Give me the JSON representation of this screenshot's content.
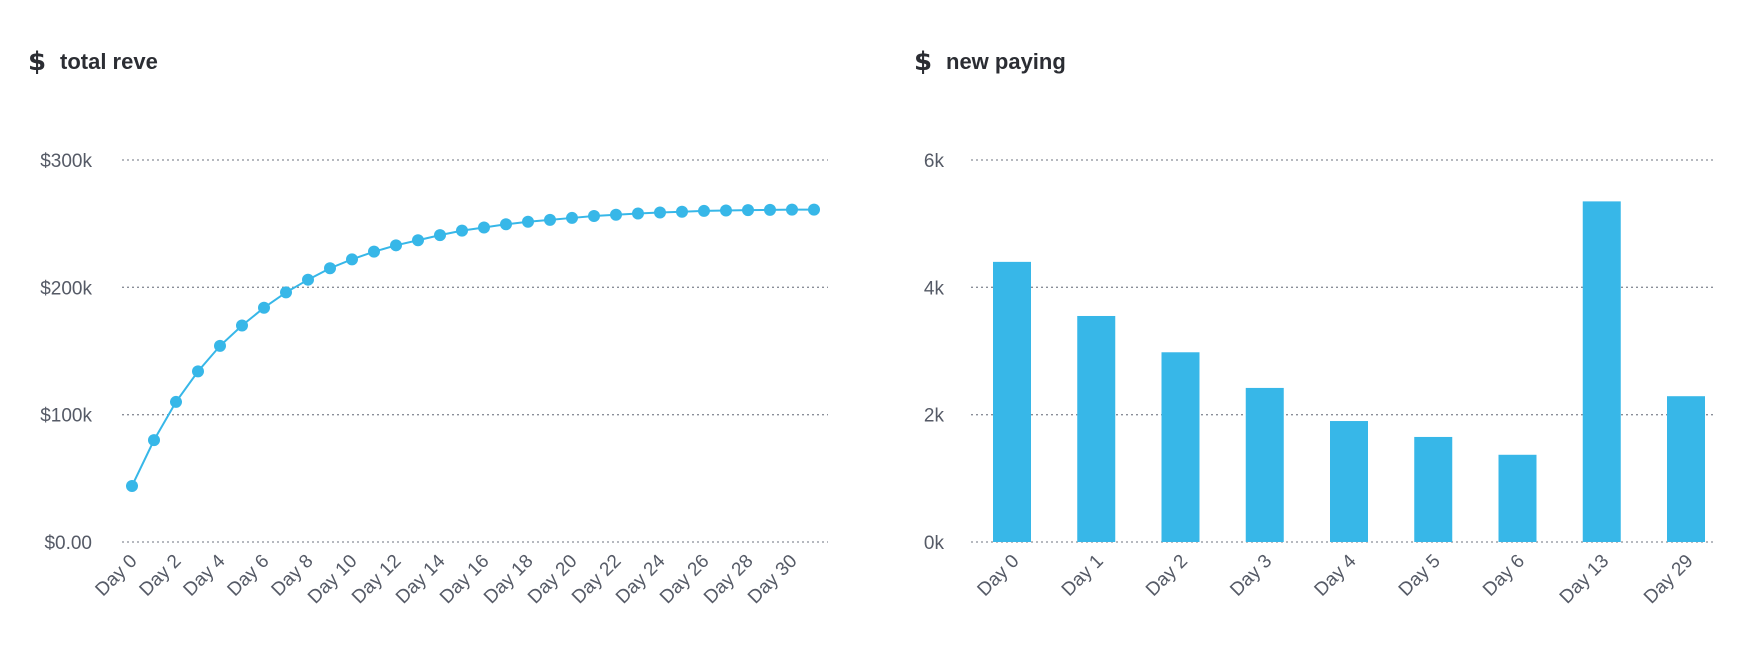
{
  "colors": {
    "accent": "#37b7e8",
    "text": "#2b2d33",
    "tick": "#555a66",
    "grid": "#8a8f99"
  },
  "panels": [
    {
      "icon": "dollar-icon",
      "icon_glyph": "$",
      "title": "total reve"
    },
    {
      "icon": "dollar-icon",
      "icon_glyph": "$",
      "title": "new paying"
    }
  ],
  "chart_data": [
    {
      "type": "line",
      "title": "total reve",
      "xlabel": "",
      "ylabel": "",
      "x": [
        "Day 0",
        "Day 1",
        "Day 2",
        "Day 3",
        "Day 4",
        "Day 5",
        "Day 6",
        "Day 7",
        "Day 8",
        "Day 9",
        "Day 10",
        "Day 11",
        "Day 12",
        "Day 13",
        "Day 14",
        "Day 15",
        "Day 16",
        "Day 17",
        "Day 18",
        "Day 19",
        "Day 20",
        "Day 21",
        "Day 22",
        "Day 23",
        "Day 24",
        "Day 25",
        "Day 26",
        "Day 27",
        "Day 28",
        "Day 29",
        "Day 30",
        "Day 31"
      ],
      "x_tick_labels": [
        "Day 0",
        "Day 2",
        "Day 4",
        "Day 6",
        "Day 8",
        "Day 10",
        "Day 12",
        "Day 14",
        "Day 16",
        "Day 18",
        "Day 20",
        "Day 22",
        "Day 24",
        "Day 26",
        "Day 28",
        "Day 30"
      ],
      "values": [
        44000,
        80000,
        110000,
        134000,
        154000,
        170000,
        184000,
        196000,
        206000,
        215000,
        222000,
        228000,
        233000,
        237000,
        241000,
        244500,
        247000,
        249500,
        251500,
        253000,
        254500,
        256000,
        257000,
        258000,
        258800,
        259400,
        260000,
        260300,
        260600,
        260800,
        261000,
        261000
      ],
      "ylim": [
        0,
        300000
      ],
      "y_ticks": [
        0,
        100000,
        200000,
        300000
      ],
      "y_tick_labels": [
        "$0.00",
        "$100k",
        "$200k",
        "$300k"
      ],
      "grid": true,
      "series_color": "#37b7e8"
    },
    {
      "type": "bar",
      "title": "new paying",
      "xlabel": "",
      "ylabel": "",
      "categories": [
        "Day 0",
        "Day 1",
        "Day 2",
        "Day 3",
        "Day 4",
        "Day 5",
        "Day 6",
        "Day 13",
        "Day 29"
      ],
      "values": [
        4400,
        3550,
        2980,
        2420,
        1900,
        1650,
        1370,
        5350,
        2290
      ],
      "ylim": [
        0,
        6000
      ],
      "y_ticks": [
        0,
        2000,
        4000,
        6000
      ],
      "y_tick_labels": [
        "0k",
        "2k",
        "4k",
        "6k"
      ],
      "grid": true,
      "series_color": "#37b7e8"
    }
  ]
}
